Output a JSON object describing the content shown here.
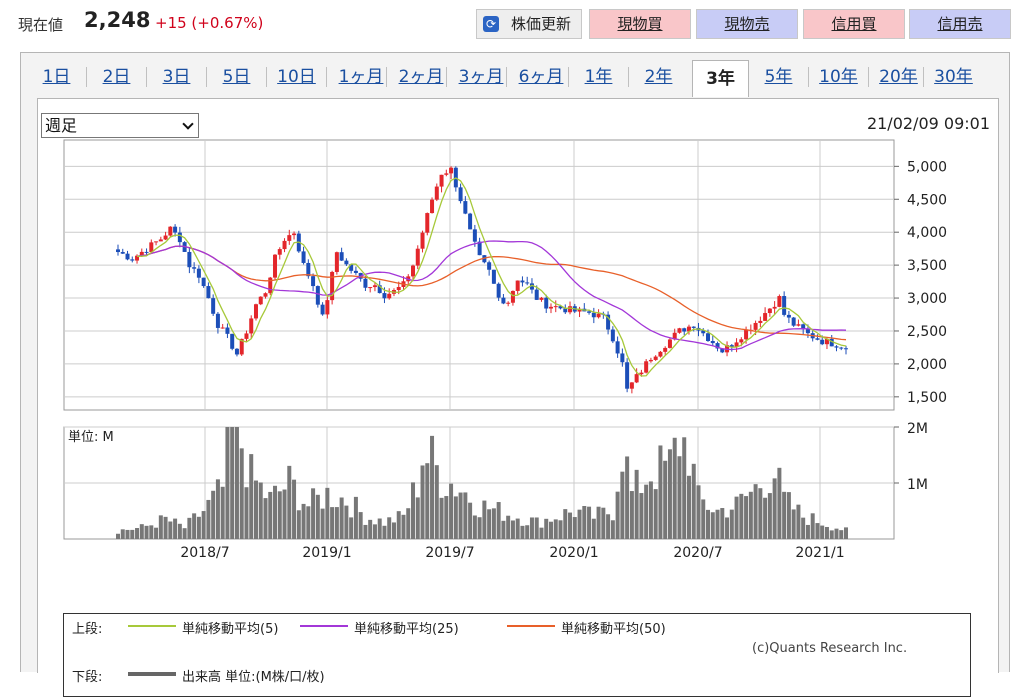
{
  "header": {
    "price_label": "現在値",
    "price_value": "2,248",
    "price_change": "+15 (+0.67%)",
    "refresh_label": "株価更新",
    "buttons": [
      "現物買",
      "現物売",
      "信用買",
      "信用売"
    ]
  },
  "tabs": [
    "1日",
    "2日",
    "3日",
    "5日",
    "10日",
    "1ヶ月",
    "2ヶ月",
    "3ヶ月",
    "6ヶ月",
    "1年",
    "2年",
    "3年",
    "5年",
    "10年",
    "20年",
    "30年"
  ],
  "active_tab": "3年",
  "period_select": "週足",
  "timestamp": "21/02/09 09:01",
  "legend": {
    "upper_label": "上段:",
    "lower_label": "下段:",
    "ma5": "単純移動平均(5)",
    "ma25": "単純移動平均(25)",
    "ma50": "単純移動平均(50)",
    "volume": "出来高 単位:(M株/口/枚)"
  },
  "copyright": "(c)Quants Research Inc.",
  "colors": {
    "up": "#e3262b",
    "down": "#1c4eb8",
    "ma5": "#a7c93a",
    "ma25": "#a337d8",
    "ma50": "#e8602a",
    "volume": "#777777"
  },
  "chart_data": {
    "type": "candlestick",
    "price_axis": {
      "ticks": [
        1500,
        2000,
        2500,
        3000,
        3500,
        4000,
        4500,
        5000
      ],
      "labels": [
        "1,500",
        "2,000",
        "2,500",
        "3,000",
        "3,500",
        "4,000",
        "4,500",
        "5,000"
      ],
      "ylim": [
        1300,
        5400
      ]
    },
    "volume_axis": {
      "ticks": [
        1,
        2
      ],
      "labels": [
        "1M",
        "2M"
      ],
      "title": "単位: M",
      "ylim": [
        0,
        2
      ]
    },
    "x_labels": [
      "2018/7",
      "2019/1",
      "2019/7",
      "2020/1",
      "2020/7",
      "2021/1"
    ],
    "close_keypoints": [
      [
        0,
        3700
      ],
      [
        3,
        3600
      ],
      [
        6,
        3750
      ],
      [
        9,
        3900
      ],
      [
        11,
        4050
      ],
      [
        13,
        3900
      ],
      [
        15,
        3500
      ],
      [
        17,
        3350
      ],
      [
        19,
        3000
      ],
      [
        21,
        2600
      ],
      [
        23,
        2400
      ],
      [
        25,
        2150
      ],
      [
        27,
        2500
      ],
      [
        29,
        2900
      ],
      [
        31,
        3100
      ],
      [
        33,
        3600
      ],
      [
        35,
        3900
      ],
      [
        37,
        4000
      ],
      [
        39,
        3500
      ],
      [
        41,
        3200
      ],
      [
        43,
        2700
      ],
      [
        44,
        3000
      ],
      [
        46,
        3700
      ],
      [
        48,
        3500
      ],
      [
        50,
        3350
      ],
      [
        52,
        3200
      ],
      [
        54,
        3200
      ],
      [
        56,
        3050
      ],
      [
        58,
        3100
      ],
      [
        60,
        3200
      ],
      [
        62,
        3500
      ],
      [
        64,
        4000
      ],
      [
        66,
        4500
      ],
      [
        68,
        4900
      ],
      [
        70,
        4950
      ],
      [
        72,
        4500
      ],
      [
        74,
        4000
      ],
      [
        76,
        3600
      ],
      [
        78,
        3400
      ],
      [
        80,
        3000
      ],
      [
        82,
        2950
      ],
      [
        84,
        3300
      ],
      [
        86,
        3200
      ],
      [
        88,
        3000
      ],
      [
        90,
        2900
      ],
      [
        93,
        2850
      ],
      [
        96,
        2800
      ],
      [
        99,
        2780
      ],
      [
        102,
        2700
      ],
      [
        104,
        2400
      ],
      [
        106,
        2000
      ],
      [
        107,
        1600
      ],
      [
        109,
        1800
      ],
      [
        112,
        2100
      ],
      [
        115,
        2300
      ],
      [
        118,
        2500
      ],
      [
        121,
        2600
      ],
      [
        124,
        2400
      ],
      [
        127,
        2200
      ],
      [
        129,
        2300
      ],
      [
        132,
        2500
      ],
      [
        135,
        2700
      ],
      [
        137,
        2850
      ],
      [
        139,
        3000
      ],
      [
        140,
        2750
      ],
      [
        142,
        2600
      ],
      [
        145,
        2450
      ],
      [
        148,
        2350
      ],
      [
        151,
        2300
      ],
      [
        153,
        2250
      ]
    ],
    "volume_keypoints": [
      [
        0,
        0.15
      ],
      [
        5,
        0.2
      ],
      [
        10,
        0.35
      ],
      [
        14,
        0.2
      ],
      [
        18,
        0.5
      ],
      [
        22,
        0.9
      ],
      [
        24,
        2.0
      ],
      [
        26,
        1.7
      ],
      [
        28,
        1.1
      ],
      [
        32,
        0.7
      ],
      [
        36,
        1.0
      ],
      [
        40,
        0.6
      ],
      [
        44,
        0.8
      ],
      [
        48,
        0.7
      ],
      [
        52,
        0.4
      ],
      [
        56,
        0.3
      ],
      [
        60,
        0.4
      ],
      [
        63,
        1.0
      ],
      [
        64,
        1.5
      ],
      [
        66,
        1.4
      ],
      [
        68,
        1.1
      ],
      [
        72,
        0.9
      ],
      [
        76,
        0.6
      ],
      [
        80,
        0.5
      ],
      [
        84,
        0.4
      ],
      [
        88,
        0.3
      ],
      [
        92,
        0.4
      ],
      [
        96,
        0.5
      ],
      [
        100,
        0.4
      ],
      [
        104,
        0.5
      ],
      [
        106,
        1.7
      ],
      [
        108,
        0.8
      ],
      [
        112,
        1.2
      ],
      [
        116,
        1.3
      ],
      [
        118,
        1.8
      ],
      [
        120,
        1.6
      ],
      [
        122,
        0.7
      ],
      [
        126,
        0.5
      ],
      [
        130,
        0.6
      ],
      [
        134,
        0.9
      ],
      [
        136,
        1.1
      ],
      [
        138,
        1.2
      ],
      [
        140,
        0.7
      ],
      [
        144,
        0.4
      ],
      [
        148,
        0.3
      ],
      [
        153,
        0.15
      ]
    ],
    "n_weeks": 154
  }
}
